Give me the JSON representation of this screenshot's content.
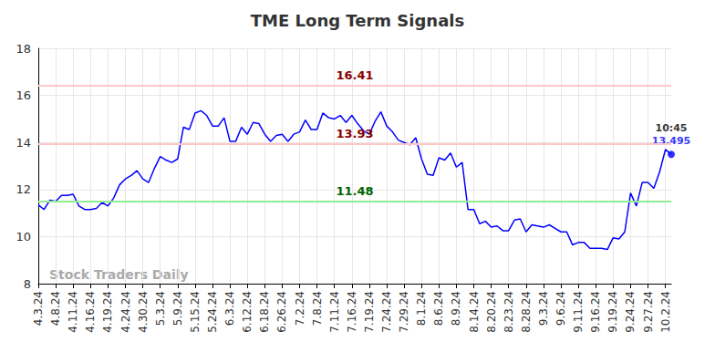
{
  "chart_data": {
    "type": "line",
    "title": "TME Long Term Signals",
    "watermark": "Stock Traders Daily",
    "color": "#0000ff",
    "grid": true,
    "ylim": [
      8,
      18
    ],
    "yticks": [
      8,
      10,
      12,
      14,
      16,
      18
    ],
    "categories": [
      "4.3.24",
      null,
      null,
      "4.8.24",
      null,
      null,
      "4.11.24",
      null,
      null,
      "4.16.24",
      null,
      null,
      "4.19.24",
      null,
      null,
      "4.24.24",
      null,
      null,
      "4.30.24",
      null,
      null,
      "5.3.24",
      null,
      null,
      "5.9.24",
      null,
      null,
      "5.15.24",
      null,
      null,
      "5.24.24",
      null,
      null,
      "6.3.24",
      null,
      null,
      "6.12.24",
      null,
      null,
      "6.18.24",
      null,
      null,
      "6.26.24",
      null,
      null,
      "7.2.24",
      null,
      null,
      "7.8.24",
      null,
      null,
      "7.11.24",
      null,
      null,
      "7.16.24",
      null,
      null,
      "7.19.24",
      null,
      null,
      "7.24.24",
      null,
      null,
      "7.29.24",
      null,
      null,
      "8.1.24",
      null,
      null,
      "8.6.24",
      null,
      null,
      "8.9.24",
      null,
      null,
      "8.14.24",
      null,
      null,
      "8.20.24",
      null,
      null,
      "8.23.24",
      null,
      null,
      "8.28.24",
      null,
      null,
      "9.3.24",
      null,
      null,
      "9.6.24",
      null,
      null,
      "9.11.24",
      null,
      null,
      "9.16.24",
      null,
      null,
      "9.19.24",
      null,
      null,
      "9.24.24",
      null,
      null,
      "9.27.24",
      null,
      null,
      "10.2.24",
      null
    ],
    "values": [
      11.35,
      11.15,
      11.55,
      11.5,
      11.75,
      11.75,
      11.8,
      11.3,
      11.15,
      11.15,
      11.2,
      11.45,
      11.3,
      11.65,
      12.2,
      12.45,
      12.6,
      12.8,
      12.45,
      12.3,
      12.9,
      13.4,
      13.25,
      13.15,
      13.3,
      14.65,
      14.55,
      15.25,
      15.35,
      15.15,
      14.7,
      14.7,
      15.05,
      14.05,
      14.05,
      14.65,
      14.35,
      14.85,
      14.8,
      14.35,
      14.05,
      14.3,
      14.35,
      14.05,
      14.35,
      14.45,
      14.95,
      14.55,
      14.55,
      15.25,
      15.05,
      15.0,
      15.15,
      14.85,
      15.15,
      14.8,
      14.5,
      14.35,
      14.9,
      15.3,
      14.7,
      14.45,
      14.1,
      14.0,
      13.9,
      14.2,
      13.3,
      12.65,
      12.6,
      13.35,
      13.25,
      13.55,
      12.95,
      13.15,
      11.15,
      11.15,
      10.55,
      10.65,
      10.4,
      10.45,
      10.25,
      10.25,
      10.7,
      10.75,
      10.2,
      10.5,
      10.45,
      10.4,
      10.5,
      10.35,
      10.2,
      10.2,
      9.65,
      9.75,
      9.75,
      9.5,
      9.5,
      9.5,
      9.45,
      9.95,
      9.9,
      10.2,
      11.85,
      11.3,
      12.3,
      12.3,
      12.05,
      12.75,
      13.7,
      13.495
    ],
    "reference_lines": [
      {
        "value": 16.41,
        "color": "#ffc8c8",
        "label_color": "#8b0000"
      },
      {
        "value": 13.93,
        "color": "#ffc8c8",
        "label_color": "#8b0000"
      },
      {
        "value": 11.48,
        "color": "#90ee90",
        "label_color": "#006400"
      }
    ],
    "annotations": [
      {
        "text": "10:45"
      }
    ]
  }
}
